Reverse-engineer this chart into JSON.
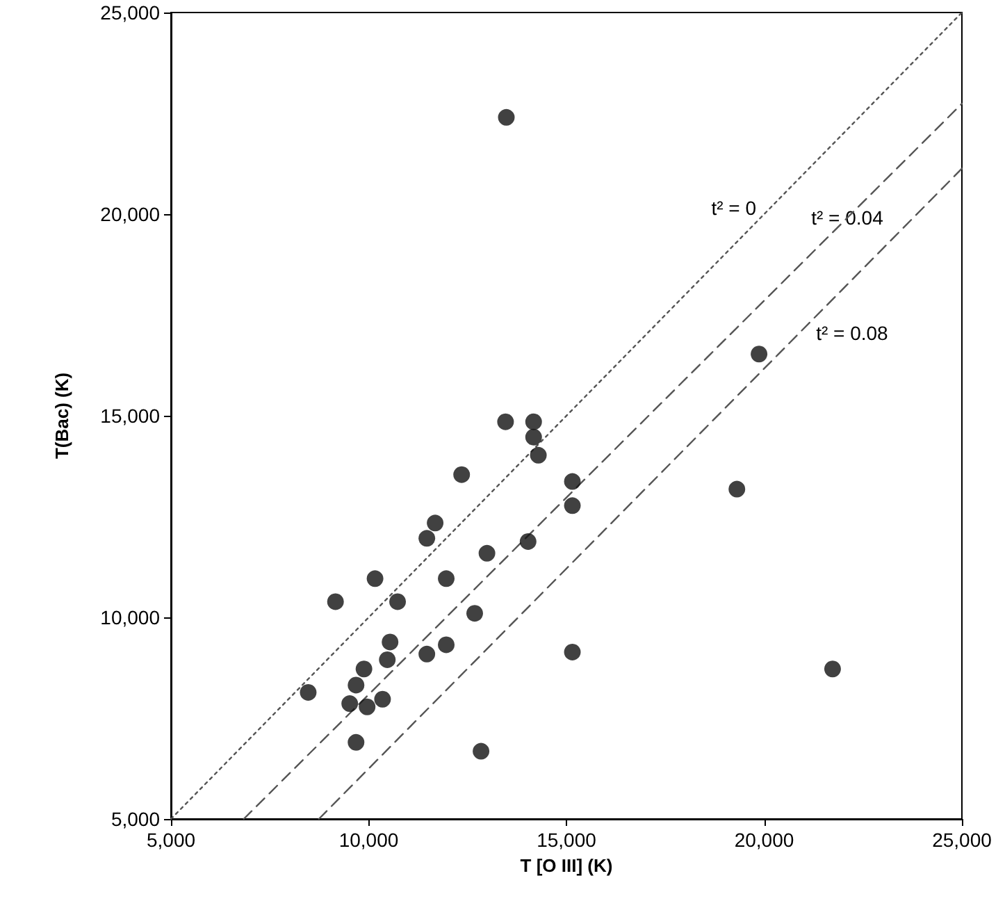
{
  "chart_data": {
    "type": "scatter",
    "xlabel": "T [O III] (K)",
    "ylabel": "T(Bac) (K)",
    "xlim": [
      5000,
      25000
    ],
    "ylim": [
      5000,
      25000
    ],
    "xticks": [
      {
        "value": 5000,
        "label": "5,000"
      },
      {
        "value": 10000,
        "label": "10,000"
      },
      {
        "value": 15000,
        "label": "15,000"
      },
      {
        "value": 20000,
        "label": "20,000"
      },
      {
        "value": 25000,
        "label": "25,000"
      }
    ],
    "yticks": [
      {
        "value": 5000,
        "label": "5,000"
      },
      {
        "value": 10000,
        "label": "10,000"
      },
      {
        "value": 15000,
        "label": "15,000"
      },
      {
        "value": 20000,
        "label": "20,000"
      },
      {
        "value": 25000,
        "label": "25,000"
      }
    ],
    "grid": false,
    "marker": "circle",
    "series": [
      {
        "color": "#111111",
        "x": [
          13460,
          14170,
          14170,
          14290,
          12350,
          15150,
          15150,
          11680,
          11470,
          14030,
          12990,
          10160,
          11960,
          9160,
          10730,
          12680,
          10540,
          10470,
          11470,
          11960,
          15150,
          9880,
          8470,
          9680,
          9520,
          9960,
          10350,
          9680,
          12840,
          19870,
          19310,
          21730,
          13480
        ],
        "values": [
          14850,
          14850,
          14470,
          14020,
          13540,
          13370,
          12770,
          12340,
          11960,
          11880,
          11590,
          10960,
          10960,
          10390,
          10390,
          10100,
          9390,
          8950,
          9090,
          9320,
          9140,
          8720,
          8140,
          8320,
          7860,
          7780,
          7970,
          6900,
          6680,
          16530,
          13180,
          8720,
          22400
        ]
      },
      {
        "type": "line",
        "color": "#555555",
        "line_style": "dotted",
        "marker": "none",
        "x": [
          5000,
          25000
        ],
        "values": [
          5000,
          25000
        ]
      },
      {
        "type": "line",
        "color": "#555555",
        "line_style": "dashed",
        "marker": "none",
        "x": [
          6840,
          25000
        ],
        "values": [
          5000,
          22740
        ]
      },
      {
        "type": "line",
        "color": "#555555",
        "line_style": "dashed",
        "marker": "none",
        "x": [
          8740,
          25000
        ],
        "values": [
          5000,
          21130
        ]
      }
    ],
    "annotations": [
      {
        "text": "t² = 0",
        "x": 20150,
        "y": 20150
      },
      {
        "text": "t² = 0.04",
        "x": 22100,
        "y": 19910
      },
      {
        "text": "t² = 0.08",
        "x": 20890,
        "y": 17050
      }
    ]
  }
}
